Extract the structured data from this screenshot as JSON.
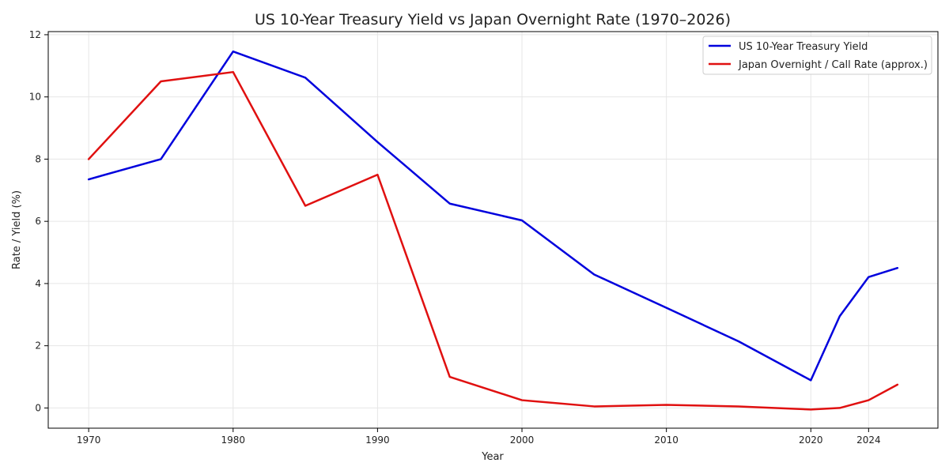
{
  "chart_data": {
    "type": "line",
    "title": "US 10-Year Treasury Yield vs Japan Overnight Rate (1970–2026)",
    "xlabel": "Year",
    "ylabel": "Rate / Yield (%)",
    "xlim": [
      1967.2,
      2028.8
    ],
    "ylim": [
      -0.65,
      12.1
    ],
    "x_ticks": [
      1970,
      1980,
      1990,
      2000,
      2010,
      2020,
      2024
    ],
    "y_ticks": [
      0,
      2,
      4,
      6,
      8,
      10,
      12
    ],
    "grid": true,
    "legend_position": "top-right",
    "series": [
      {
        "name": "US 10-Year Treasury Yield",
        "color": "#0000dd",
        "x": [
          1970,
          1975,
          1980,
          1985,
          1990,
          1995,
          2000,
          2005,
          2010,
          2015,
          2020,
          2022,
          2024,
          2026
        ],
        "y": [
          7.35,
          8.0,
          11.46,
          10.62,
          8.55,
          6.57,
          6.03,
          4.29,
          3.22,
          2.14,
          0.89,
          2.95,
          4.21,
          4.5
        ]
      },
      {
        "name": "Japan Overnight / Call Rate (approx.)",
        "color": "#e01010",
        "x": [
          1970,
          1975,
          1980,
          1985,
          1990,
          1995,
          2000,
          2005,
          2010,
          2015,
          2020,
          2022,
          2024,
          2026
        ],
        "y": [
          8.0,
          10.5,
          10.8,
          6.5,
          7.5,
          1.0,
          0.25,
          0.05,
          0.1,
          0.05,
          -0.05,
          0.0,
          0.25,
          0.75
        ]
      }
    ]
  }
}
